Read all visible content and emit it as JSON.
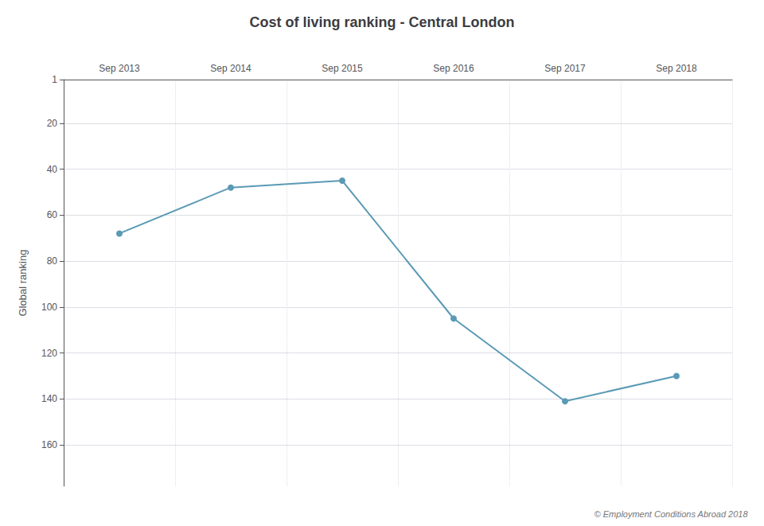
{
  "chart_data": {
    "type": "line",
    "title": "Cost of living ranking - Central London",
    "categories": [
      "Sep 2013",
      "Sep 2014",
      "Sep 2015",
      "Sep 2016",
      "Sep 2017",
      "Sep 2018"
    ],
    "values": [
      68,
      48,
      45,
      105,
      141,
      130
    ],
    "color": "#5a9ab5",
    "marker": "circle",
    "y_label": "Global ranking",
    "ylim": [
      178,
      1
    ],
    "yticks": [
      1,
      20,
      40,
      60,
      80,
      100,
      120,
      140,
      160
    ],
    "grid": true,
    "annotations": [
      "© Employment Conditions Abroad 2018"
    ]
  }
}
